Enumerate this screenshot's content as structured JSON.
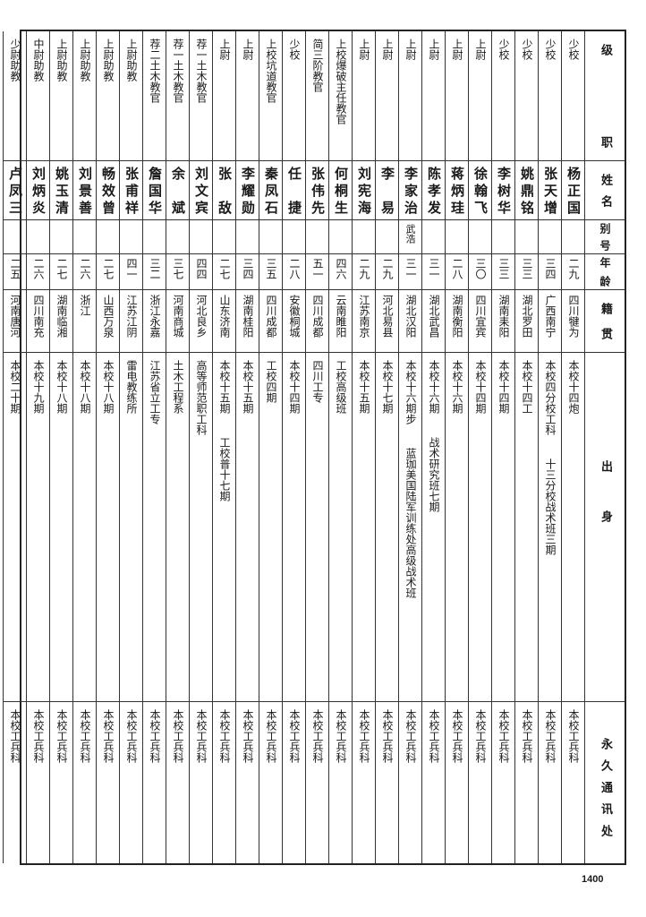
{
  "headers": {
    "rank": "级职",
    "name": "姓名",
    "alias": "别号",
    "age": "年龄",
    "hometown": "籍贯",
    "origin": "出身",
    "address": "永久通讯处"
  },
  "rows": [
    {
      "rank": "少校",
      "name": "杨正国",
      "alias": "",
      "age": "二九",
      "hometown": "四川犍为",
      "origin": [
        "本校十四炮"
      ],
      "address": "本校工兵科"
    },
    {
      "rank": "少校",
      "name": "张天增",
      "alias": "",
      "age": "三四",
      "hometown": "广西南宁",
      "origin": [
        "本校四分校工科",
        "十三分校战术班三期"
      ],
      "address": "本校工兵科"
    },
    {
      "rank": "少校",
      "name": "姚鼎铭",
      "alias": "",
      "age": "三三",
      "hometown": "湖北罗田",
      "origin": [
        "本校十四工"
      ],
      "address": "本校工兵科"
    },
    {
      "rank": "少校",
      "name": "李树华",
      "alias": "",
      "age": "三三",
      "hometown": "湖南耒阳",
      "origin": [
        "本校十四期"
      ],
      "address": "本校工兵科"
    },
    {
      "rank": "上尉",
      "name": "徐翰飞",
      "alias": "",
      "age": "三〇",
      "hometown": "四川宜宾",
      "origin": [
        "本校十四期"
      ],
      "address": "本校工兵科"
    },
    {
      "rank": "上尉",
      "name": "蒋炳珪",
      "alias": "",
      "age": "二八",
      "hometown": "湖南衡阳",
      "origin": [
        "本校十六期"
      ],
      "address": "本校工兵科"
    },
    {
      "rank": "上尉",
      "name": "陈孝发",
      "alias": "",
      "age": "三一",
      "hometown": "湖北武昌",
      "origin": [
        "本校十六期",
        "战术研究班七期"
      ],
      "address": "本校工兵科"
    },
    {
      "rank": "上尉",
      "name": "李家治",
      "alias": "武浩",
      "age": "三一",
      "hometown": "湖北汉阳",
      "origin": [
        "本校十六期步",
        "蓝珈美国陆军训练处高级战术班"
      ],
      "address": "本校工兵科"
    },
    {
      "rank": "上尉",
      "name": "李易",
      "alias": "",
      "age": "二九",
      "hometown": "河北易县",
      "origin": [
        "本校十七期"
      ],
      "address": "本校工兵科"
    },
    {
      "rank": "上尉",
      "name": "刘宪海",
      "alias": "",
      "age": "二九",
      "hometown": "江苏南京",
      "origin": [
        "本校十五期"
      ],
      "address": "本校工兵科"
    },
    {
      "rank": "上校爆破主任教官",
      "name": "何桐生",
      "alias": "",
      "age": "四六",
      "hometown": "云南睢阳",
      "origin": [
        "工校高级班"
      ],
      "address": "本校工兵科"
    },
    {
      "rank": "简三阶教官",
      "name": "张伟先",
      "alias": "",
      "age": "五一",
      "hometown": "四川成都",
      "origin": [
        "四川工专"
      ],
      "address": "本校工兵科"
    },
    {
      "rank": "少校",
      "name": "任捷",
      "alias": "",
      "age": "二八",
      "hometown": "安徽桐城",
      "origin": [
        "本校十四期"
      ],
      "address": "本校工兵科"
    },
    {
      "rank": "上校坑道教官",
      "name": "秦凤石",
      "alias": "",
      "age": "三五",
      "hometown": "四川成都",
      "origin": [
        "工校四期"
      ],
      "address": "本校工兵科"
    },
    {
      "rank": "上尉",
      "name": "李耀勋",
      "alias": "",
      "age": "三四",
      "hometown": "湖南桂阳",
      "origin": [
        "本校十五期"
      ],
      "address": "本校工兵科"
    },
    {
      "rank": "上尉",
      "name": "张敌",
      "alias": "",
      "age": "二七",
      "hometown": "山东济南",
      "origin": [
        "本校十五期",
        "工校普十七期"
      ],
      "address": "本校工兵科"
    },
    {
      "rank": "荐一土木教官",
      "name": "刘文宾",
      "alias": "",
      "age": "四四",
      "hometown": "河北良乡",
      "origin": [
        "高等师范职工科"
      ],
      "address": "本校工兵科"
    },
    {
      "rank": "荐一土木教官",
      "name": "余斌",
      "alias": "",
      "age": "三七",
      "hometown": "河南商城",
      "origin": [
        "土木工程系"
      ],
      "address": "本校工兵科"
    },
    {
      "rank": "荐二土木教官",
      "name": "詹国华",
      "alias": "",
      "age": "三二",
      "hometown": "浙江永嘉",
      "origin": [
        "江苏省立工专"
      ],
      "address": "本校工兵科"
    },
    {
      "rank": "上尉助教",
      "name": "张甫祥",
      "alias": "",
      "age": "四一",
      "hometown": "江苏江阴",
      "origin": [
        "雷电教练所"
      ],
      "address": "本校工兵科"
    },
    {
      "rank": "上尉助教",
      "name": "畅效曾",
      "alias": "",
      "age": "二七",
      "hometown": "山西万泉",
      "origin": [
        "本校十八期"
      ],
      "address": "本校工兵科"
    },
    {
      "rank": "上尉助教",
      "name": "刘景善",
      "alias": "",
      "age": "二六",
      "hometown": "浙江",
      "origin": [
        "本校十八期"
      ],
      "address": "本校工兵科"
    },
    {
      "rank": "上尉助教",
      "name": "姚玉清",
      "alias": "",
      "age": "二七",
      "hometown": "湖南临湘",
      "origin": [
        "本校十八期"
      ],
      "address": "本校工兵科"
    },
    {
      "rank": "中尉助教",
      "name": "刘炳炎",
      "alias": "",
      "age": "二六",
      "hometown": "四川南充",
      "origin": [
        "本校十九期"
      ],
      "address": "本校工兵科"
    },
    {
      "rank": "少尉助教",
      "name": "卢凤三",
      "alias": "",
      "age": "二五",
      "hometown": "河南唐河",
      "origin": [
        "本校二十期"
      ],
      "address": "本校工兵科"
    }
  ],
  "page_number": "1400"
}
